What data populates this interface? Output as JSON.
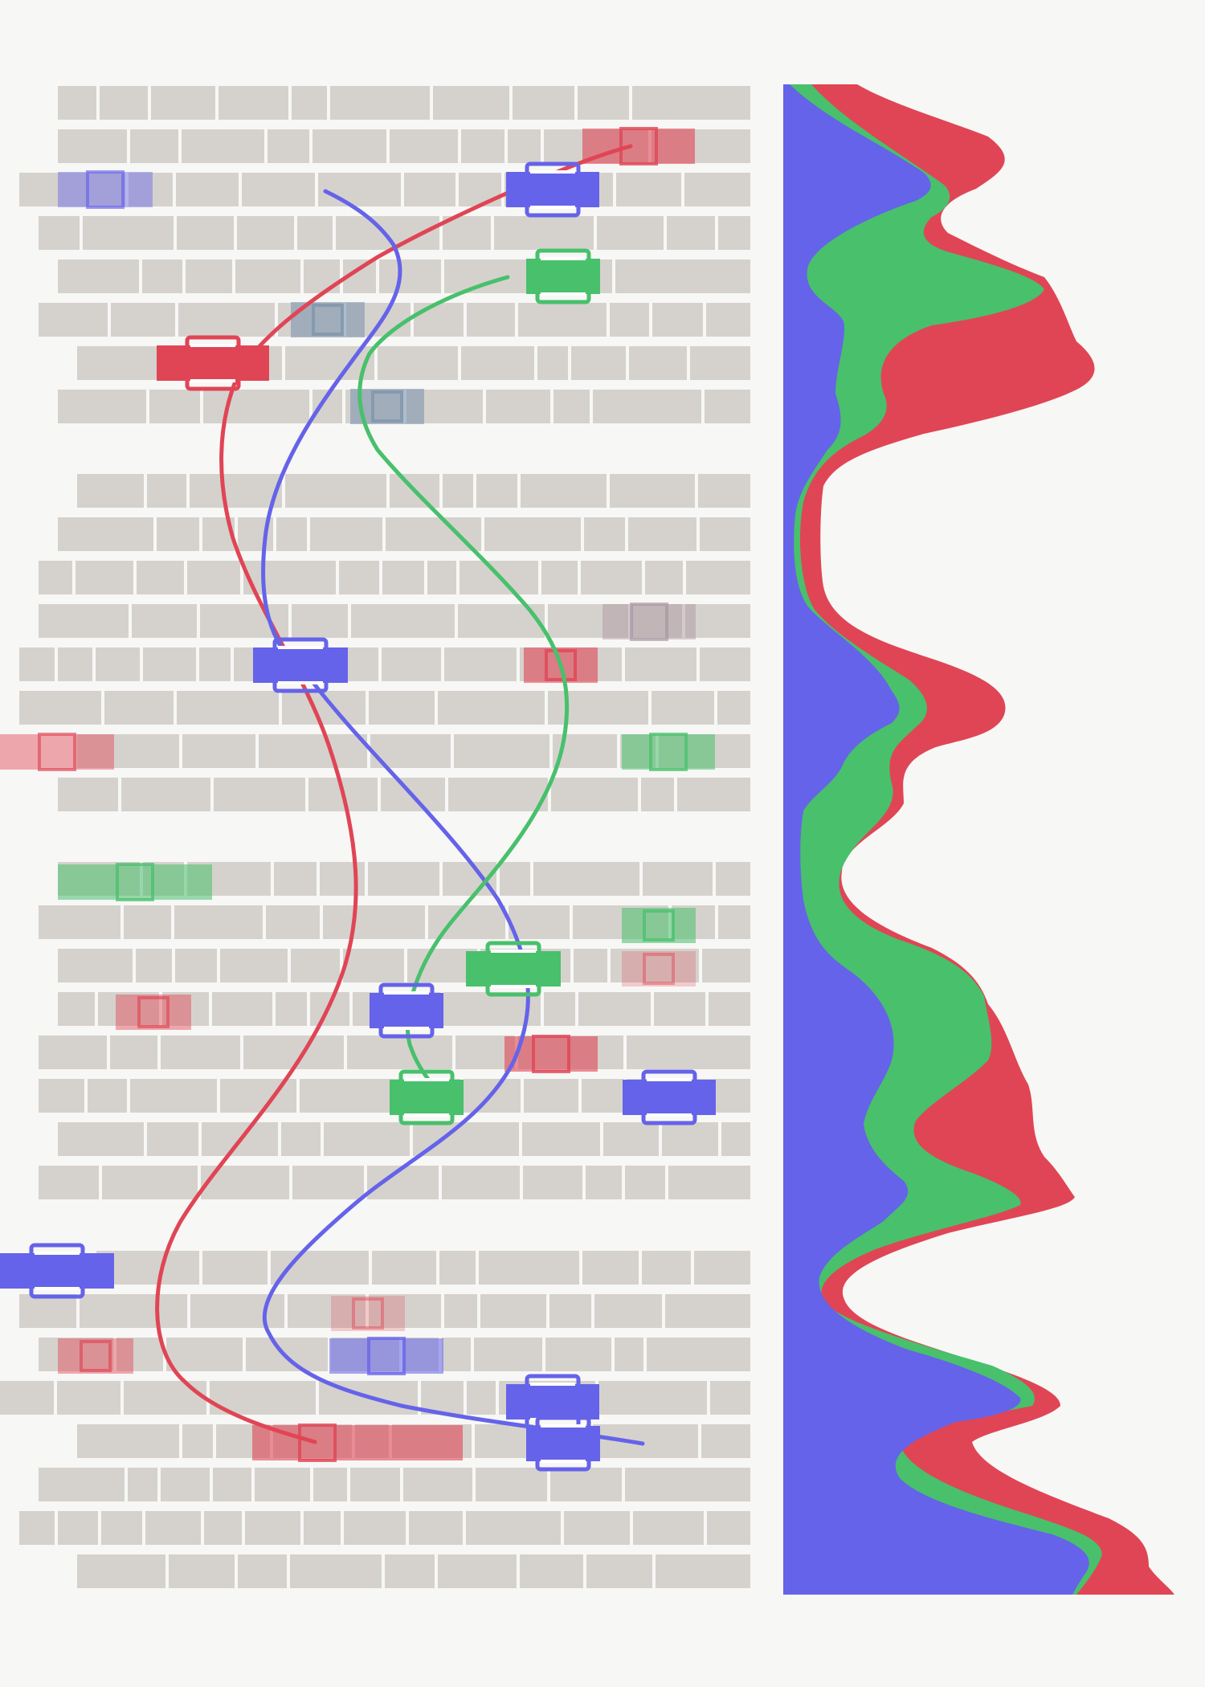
{
  "colors": {
    "background": "#f7f7f5",
    "cell": "#d5d2cd",
    "blue": "#6563e9",
    "green": "#48c06c",
    "red": "#e04555"
  },
  "rows_per_block": 8,
  "blocks": 4,
  "series": [
    {
      "color_key": "blue"
    },
    {
      "color_key": "green"
    },
    {
      "color_key": "red"
    }
  ]
}
